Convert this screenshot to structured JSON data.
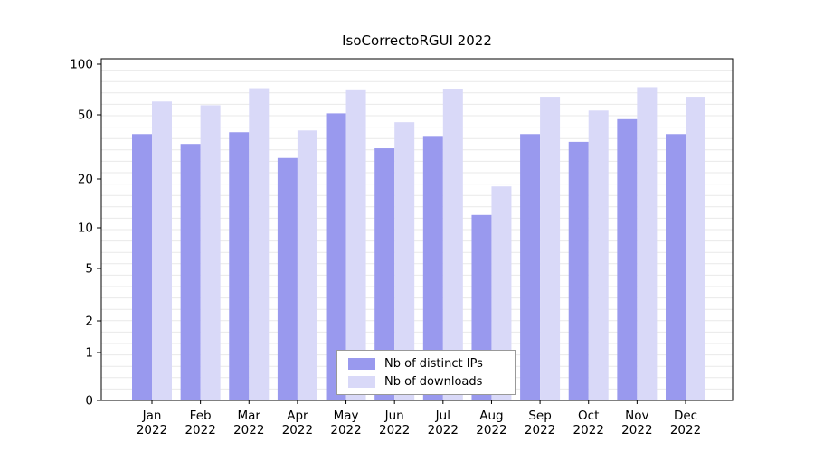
{
  "chart_data": {
    "type": "bar",
    "title": "IsoCorrectoRGUI 2022",
    "categories": [
      "Jan",
      "Feb",
      "Mar",
      "Apr",
      "May",
      "Jun",
      "Jul",
      "Aug",
      "Sep",
      "Oct",
      "Nov",
      "Dec"
    ],
    "year": "2022",
    "series": [
      {
        "name": "Nb of distinct IPs",
        "color": "#9999ee",
        "values": [
          38,
          33,
          39,
          27,
          51,
          31,
          37,
          12,
          38,
          34,
          47,
          38
        ]
      },
      {
        "name": "Nb of downloads",
        "color": "#d9d9f8",
        "values": [
          60,
          57,
          72,
          40,
          70,
          45,
          71,
          18,
          64,
          53,
          73,
          64
        ]
      }
    ],
    "yticks": [
      0,
      1,
      2,
      5,
      10,
      20,
      50,
      100
    ],
    "yscale": "log-like",
    "ylim": [
      0,
      100
    ],
    "xlabel": "",
    "ylabel": "",
    "grid": "horizontal",
    "legend_position": "bottom-center"
  },
  "colors": {
    "background": "#ffffff",
    "grid": "#e9e9e9",
    "axis": "#000000",
    "legend_border": "#999999"
  }
}
